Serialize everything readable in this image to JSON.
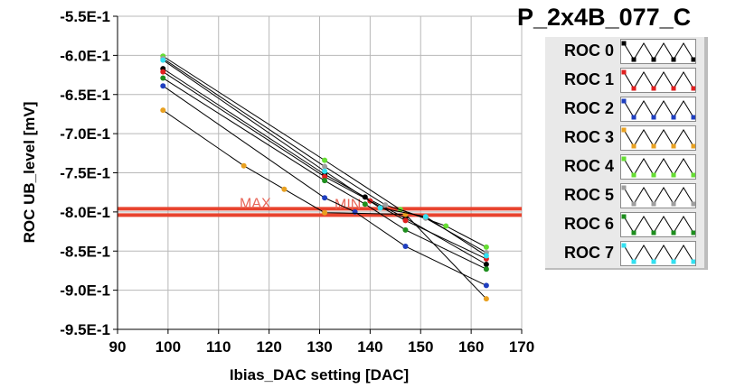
{
  "board_title": "P_2x4B_077_C",
  "chart_data": {
    "type": "line",
    "title": "",
    "xlabel": "Ibias_DAC setting [DAC]",
    "ylabel": "ROC UB_level [mV]",
    "xlim": [
      90,
      170
    ],
    "ylim": [
      -0.95,
      -0.55
    ],
    "x_ticks": [
      "90",
      "100",
      "110",
      "120",
      "130",
      "140",
      "150",
      "160",
      "170"
    ],
    "y_ticks": [
      "-5.5E-1",
      "-6.0E-1",
      "-6.5E-1",
      "-7.0E-1",
      "-7.5E-1",
      "-8.0E-1",
      "-8.5E-1",
      "-9.0E-1",
      "-9.5E-1"
    ],
    "grid": true,
    "legend_position": "right",
    "thresholds": [
      {
        "label": "MAX",
        "y": -0.796,
        "color": "#e8432e"
      },
      {
        "label": "MIN",
        "y": -0.804,
        "color": "#e8432e"
      }
    ],
    "series": [
      {
        "name": "ROC 0",
        "color": "#000000",
        "points": [
          [
            99,
            -0.617
          ],
          [
            131,
            -0.752
          ],
          [
            139,
            -0.781
          ],
          [
            147,
            -0.808
          ],
          [
            163,
            -0.867
          ]
        ]
      },
      {
        "name": "ROC 1",
        "color": "#e02020",
        "points": [
          [
            99,
            -0.621
          ],
          [
            131,
            -0.755
          ],
          [
            140,
            -0.786
          ],
          [
            147,
            -0.811
          ],
          [
            163,
            -0.86
          ]
        ]
      },
      {
        "name": "ROC 2",
        "color": "#1f3fbf",
        "points": [
          [
            99,
            -0.639
          ],
          [
            131,
            -0.782
          ],
          [
            137,
            -0.8
          ],
          [
            147,
            -0.844
          ],
          [
            163,
            -0.894
          ]
        ]
      },
      {
        "name": "ROC 3",
        "color": "#e8a020",
        "points": [
          [
            99,
            -0.67
          ],
          [
            115,
            -0.741
          ],
          [
            123,
            -0.771
          ],
          [
            131,
            -0.801
          ],
          [
            147,
            -0.803
          ],
          [
            163,
            -0.911
          ]
        ]
      },
      {
        "name": "ROC 4",
        "color": "#66dd33",
        "points": [
          [
            99,
            -0.601
          ],
          [
            131,
            -0.734
          ],
          [
            146,
            -0.797
          ],
          [
            155,
            -0.818
          ],
          [
            163,
            -0.845
          ]
        ]
      },
      {
        "name": "ROC 5",
        "color": "#9e9e9e",
        "points": [
          [
            99,
            -0.604
          ],
          [
            131,
            -0.742
          ],
          [
            143,
            -0.791
          ],
          [
            151,
            -0.808
          ],
          [
            163,
            -0.852
          ]
        ]
      },
      {
        "name": "ROC 6",
        "color": "#1e8e1e",
        "points": [
          [
            99,
            -0.629
          ],
          [
            131,
            -0.76
          ],
          [
            139,
            -0.79
          ],
          [
            147,
            -0.823
          ],
          [
            163,
            -0.873
          ]
        ]
      },
      {
        "name": "ROC 7",
        "color": "#33e0f0",
        "points": [
          [
            99,
            -0.606
          ],
          [
            131,
            -0.748
          ],
          [
            142,
            -0.795
          ],
          [
            151,
            -0.806
          ],
          [
            163,
            -0.856
          ]
        ]
      }
    ]
  }
}
